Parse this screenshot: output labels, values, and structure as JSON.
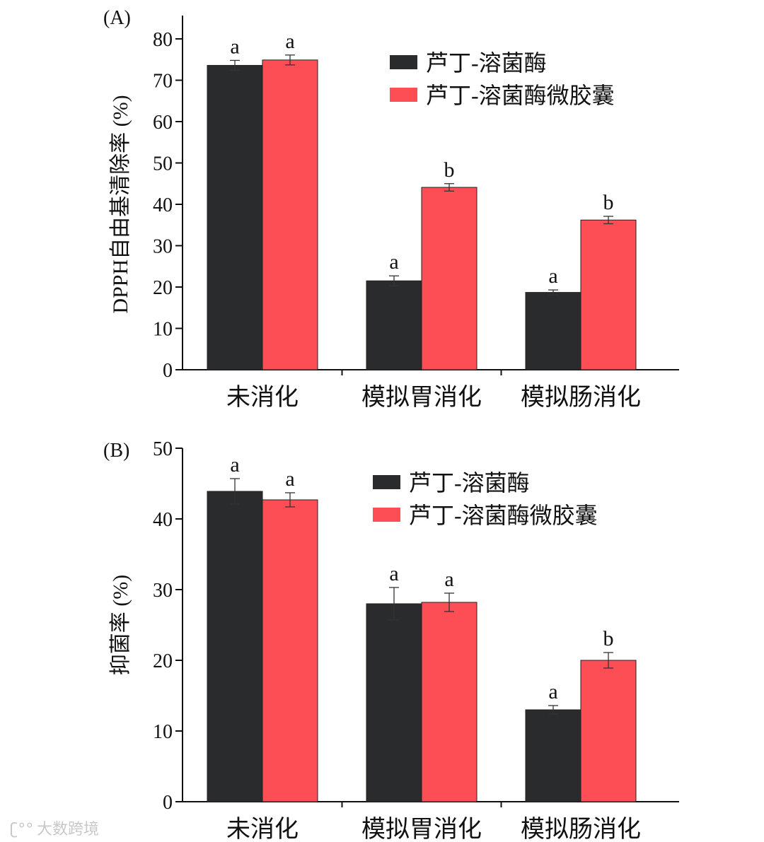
{
  "chart_data": [
    {
      "type": "bar",
      "panel_label": "(A)",
      "title": "",
      "xlabel": "",
      "ylabel": "DPPH自由基清除率 (%)",
      "ylim": [
        0,
        80
      ],
      "yticks": [
        0,
        10,
        20,
        30,
        40,
        50,
        60,
        70,
        80
      ],
      "categories": [
        "未消化",
        "模拟胃消化",
        "模拟肠消化"
      ],
      "legend_position": "top-right",
      "series": [
        {
          "name": "芦丁-溶菌酶",
          "color": "#2a2b2d",
          "values": [
            73.6,
            21.5,
            18.7
          ],
          "errors": [
            1.2,
            1.2,
            0.6
          ],
          "labels": [
            "a",
            "a",
            "a"
          ]
        },
        {
          "name": "芦丁-溶菌酶微胶囊",
          "color": "#fd4e55",
          "values": [
            74.9,
            44.1,
            36.2
          ],
          "errors": [
            1.2,
            0.9,
            0.9
          ],
          "labels": [
            "a",
            "b",
            "b"
          ]
        }
      ]
    },
    {
      "type": "bar",
      "panel_label": "(B)",
      "title": "",
      "xlabel": "",
      "ylabel": "抑菌率 (%)",
      "ylim": [
        0,
        50
      ],
      "yticks": [
        0,
        10,
        20,
        30,
        40,
        50
      ],
      "categories": [
        "未消化",
        "模拟胃消化",
        "模拟肠消化"
      ],
      "legend_position": "top-right",
      "series": [
        {
          "name": "芦丁-溶菌酶",
          "color": "#2a2b2d",
          "values": [
            43.9,
            28.0,
            13.0
          ],
          "errors": [
            1.8,
            2.3,
            0.6
          ],
          "labels": [
            "a",
            "a",
            "a"
          ]
        },
        {
          "name": "芦丁-溶菌酶微胶囊",
          "color": "#fd4e55",
          "values": [
            42.7,
            28.2,
            20.0
          ],
          "errors": [
            1.0,
            1.3,
            1.1
          ],
          "labels": [
            "a",
            "a",
            "b"
          ]
        }
      ]
    }
  ],
  "watermark": "大数跨境"
}
